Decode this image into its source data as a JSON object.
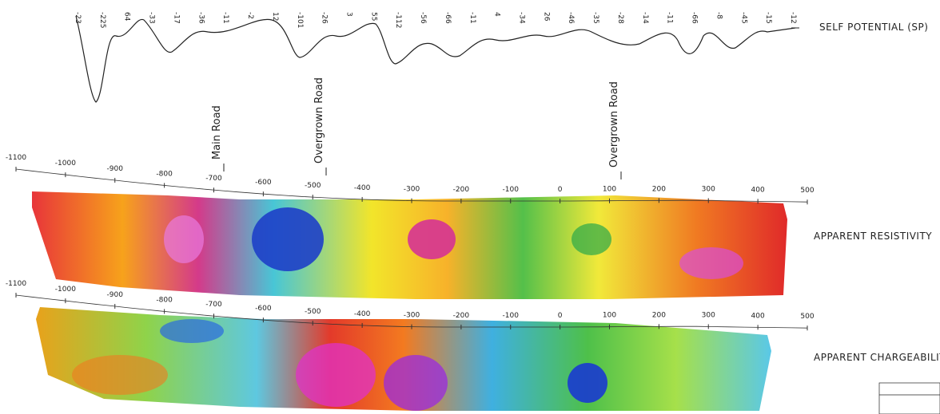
{
  "sp_profile": {
    "label": "SELF POTENTIAL (SP)",
    "station_values": [
      "-23",
      "-225",
      "64",
      "-33",
      "-17",
      "-36",
      "-11",
      "-2",
      "12",
      "-101",
      "-26",
      "3",
      "55",
      "-112",
      "-56",
      "-66",
      "-11",
      "4",
      "-34",
      "26",
      "-46",
      "-35",
      "-28",
      "-14",
      "-11",
      "-66",
      "-8",
      "-45",
      "-15",
      "-12"
    ]
  },
  "annotations": [
    "Main Road",
    "Overgrown Road",
    "Overgrown Road"
  ],
  "sections": [
    {
      "label": "APPARENT RESISTIVITY",
      "axis_ticks": [
        "-1100",
        "-1000",
        "-900",
        "-800",
        "-700",
        "-600",
        "-500",
        "-400",
        "-300",
        "-200",
        "-100",
        "0",
        "100",
        "200",
        "300",
        "400",
        "500"
      ]
    },
    {
      "label": "APPARENT CHARGEABILITY",
      "axis_ticks": [
        "-1100",
        "-1000",
        "-900",
        "-800",
        "-700",
        "-600",
        "-500",
        "-400",
        "-300",
        "-200",
        "-100",
        "0",
        "100",
        "200",
        "300",
        "400",
        "500"
      ]
    }
  ]
}
